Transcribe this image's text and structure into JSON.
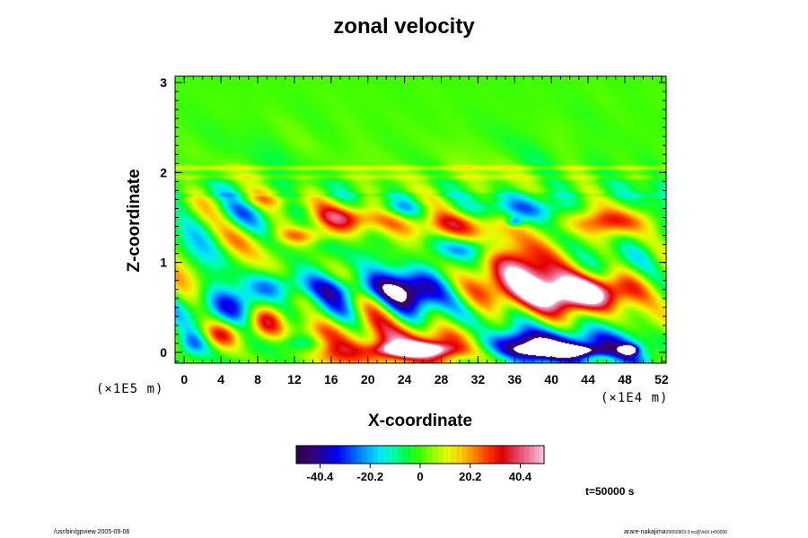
{
  "chart_data": {
    "type": "heatmap",
    "title": "zonal velocity",
    "xlabel": "X-coordinate",
    "ylabel": "Z-coordinate",
    "x_ticks": [
      "0",
      "4",
      "8",
      "12",
      "16",
      "20",
      "24",
      "28",
      "32",
      "36",
      "40",
      "44",
      "48",
      "52"
    ],
    "y_ticks": [
      "0",
      "1",
      "2",
      "3"
    ],
    "x_scale": "(×1E4 m)",
    "y_scale": "(×1E5 m)",
    "xlim": [
      -1,
      52.5
    ],
    "ylim": [
      -0.12,
      3.07
    ],
    "colorbar": {
      "ticks": [
        "-40.4",
        "-20.2",
        "0",
        "20.2",
        "40.4"
      ],
      "tick_values": [
        -40.4,
        -20.2,
        0,
        20.2,
        40.4
      ],
      "range": [
        -50,
        50
      ],
      "colors": [
        "#2a004a",
        "#3a0070",
        "#1a00b0",
        "#0000ff",
        "#0050ff",
        "#00a0ff",
        "#00e6ff",
        "#00ffb0",
        "#00ff40",
        "#40ff00",
        "#a0ff00",
        "#e6ff00",
        "#ffcc00",
        "#ff8000",
        "#ff3000",
        "#e00000",
        "#e84060",
        "#f080a0",
        "#fccce0"
      ]
    },
    "features": [
      {
        "x": 25,
        "z": 0.03,
        "value": 52,
        "rx": 3.4,
        "rz": 0.07
      },
      {
        "x": 23,
        "z": 0.05,
        "value": 38,
        "rx": 8,
        "rz": 0.2
      },
      {
        "x": 30,
        "z": 0.06,
        "value": 22,
        "rx": 3.5,
        "rz": 0.2
      },
      {
        "x": 41,
        "z": 0.02,
        "value": -52,
        "rx": 4,
        "rz": 0.06
      },
      {
        "x": 41,
        "z": 0.05,
        "value": -40,
        "rx": 9,
        "rz": 0.2
      },
      {
        "x": 48.5,
        "z": 0.03,
        "value": -50,
        "rx": 0.8,
        "rz": 0.05
      },
      {
        "x": 35,
        "z": 0.1,
        "value": -15,
        "rx": 6,
        "rz": 0.12
      },
      {
        "x": 25,
        "z": 0.68,
        "value": -42,
        "rx": 3.5,
        "rz": 0.25
      },
      {
        "x": 18,
        "z": 0.7,
        "value": -24,
        "rx": 5,
        "rz": 0.15
      },
      {
        "x": 6,
        "z": 0.55,
        "value": -30,
        "rx": 4,
        "rz": 0.2
      },
      {
        "x": 10,
        "z": 0.75,
        "value": -18,
        "rx": 4,
        "rz": 0.15
      },
      {
        "x": 39,
        "z": 0.7,
        "value": 44,
        "rx": 7,
        "rz": 0.25
      },
      {
        "x": 44,
        "z": 0.65,
        "value": 40,
        "rx": 4.5,
        "rz": 0.18
      },
      {
        "x": 36,
        "z": 0.95,
        "value": 30,
        "rx": 4,
        "rz": 0.25
      },
      {
        "x": 18,
        "z": 1.5,
        "value": 36,
        "rx": 5,
        "rz": 0.15
      },
      {
        "x": 13,
        "z": 1.3,
        "value": 25,
        "rx": 3,
        "rz": 0.1
      },
      {
        "x": 28,
        "z": 1.4,
        "value": 28,
        "rx": 5,
        "rz": 0.15
      },
      {
        "x": 46,
        "z": 1.45,
        "value": 28,
        "rx": 5,
        "rz": 0.15
      },
      {
        "x": 36,
        "z": 1.6,
        "value": -22,
        "rx": 6,
        "rz": 0.15
      },
      {
        "x": 23,
        "z": 1.6,
        "value": -20,
        "rx": 3,
        "rz": 0.12
      },
      {
        "x": 4,
        "z": 1.45,
        "value": -16,
        "rx": 3,
        "rz": 0.2
      },
      {
        "x": 9,
        "z": 1.7,
        "value": 14,
        "rx": 5,
        "rz": 0.1
      },
      {
        "x": 36,
        "z": 1.45,
        "value": -30,
        "rx": 0.8,
        "rz": 0.05
      },
      {
        "x": 1,
        "z": 0.1,
        "value": -28,
        "rx": 2,
        "rz": 0.15
      },
      {
        "x": 4,
        "z": 0.2,
        "value": 30,
        "rx": 2.5,
        "rz": 0.15
      },
      {
        "x": 9,
        "z": 0.35,
        "value": 28,
        "rx": 2,
        "rz": 0.2
      },
      {
        "x": 13,
        "z": 0.1,
        "value": -18,
        "rx": 3,
        "rz": 0.1
      },
      {
        "x": 19,
        "z": 0.3,
        "value": 14,
        "rx": 3,
        "rz": 0.15
      },
      {
        "x": 47,
        "z": 1.0,
        "value": -16,
        "rx": 4,
        "rz": 0.2
      },
      {
        "x": 14,
        "z": 0.45,
        "value": -12,
        "rx": 3,
        "rz": 0.15
      },
      {
        "x": 31,
        "z": 1.15,
        "value": -14,
        "rx": 3,
        "rz": 0.1
      }
    ],
    "time_label": "t=50000 s"
  },
  "footer": {
    "left": "/usr/bin/gpview 2005-09-06",
    "right": "arare-nakajima",
    "right_small": "20050903-3.nc@VelX,t=50000"
  }
}
